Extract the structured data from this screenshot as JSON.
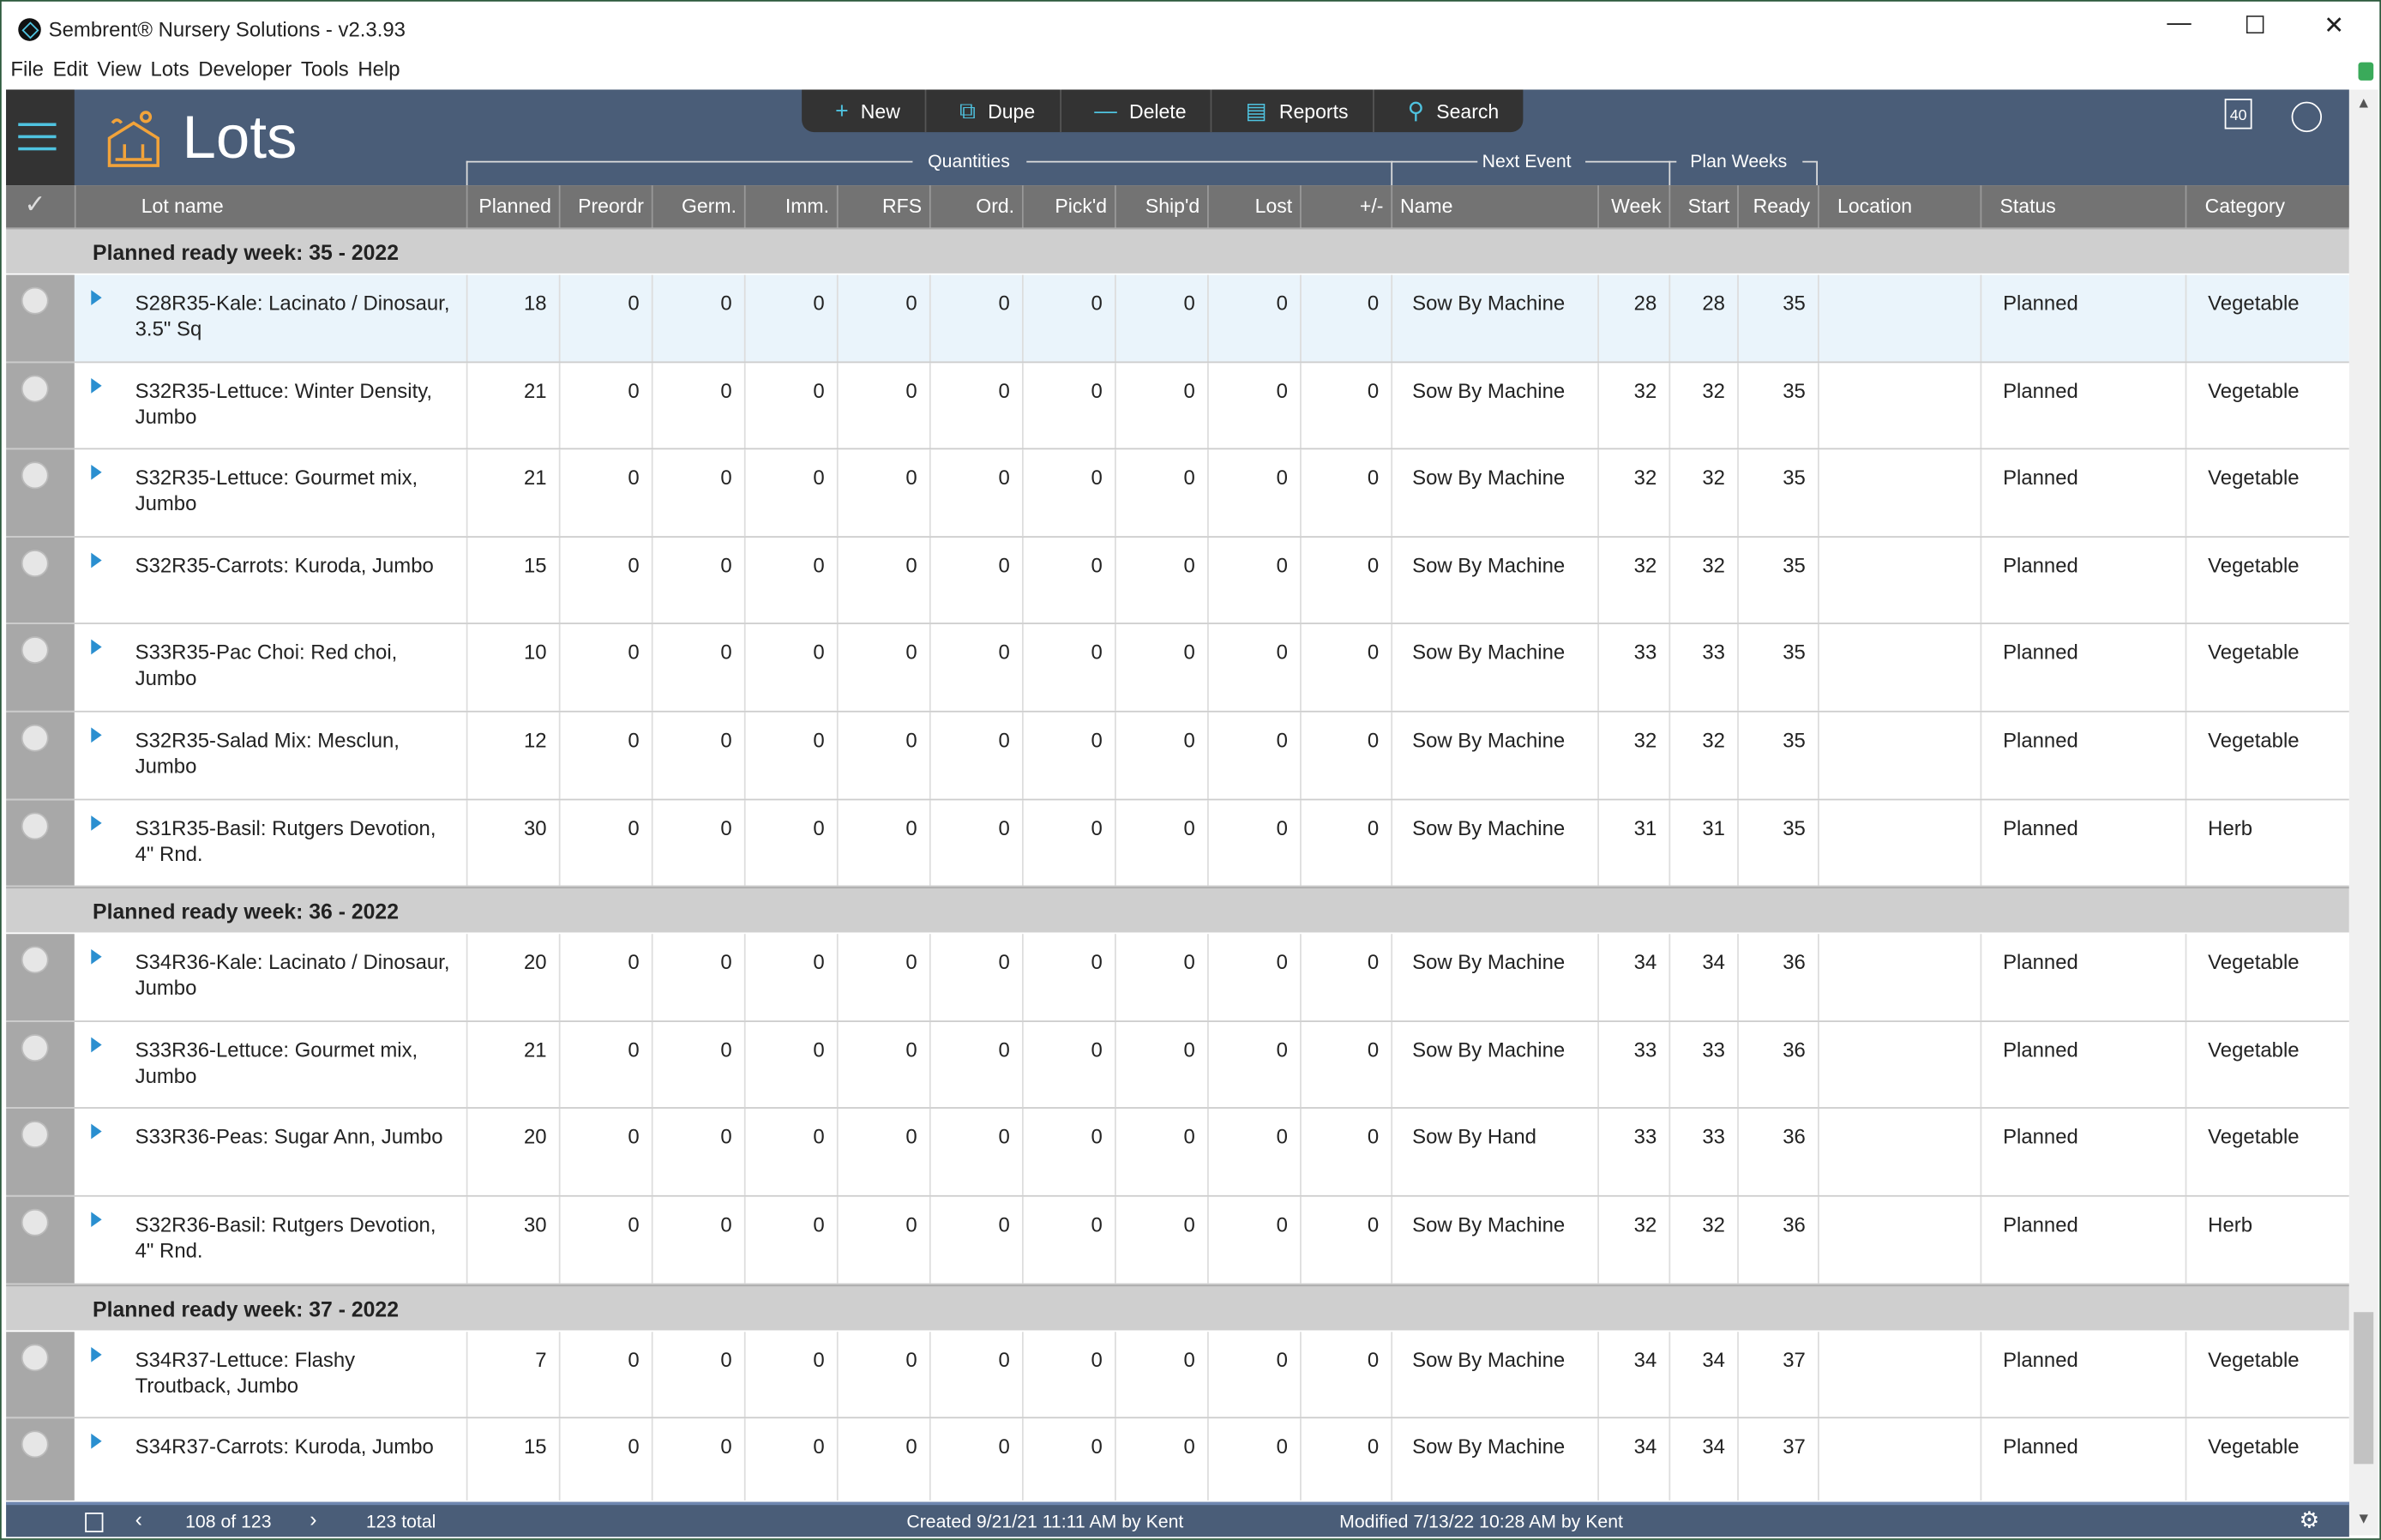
{
  "window": {
    "title": "Sembrent® Nursery Solutions - v2.3.93",
    "minimize": "—",
    "maximize": "☐",
    "close": "✕"
  },
  "menu": [
    "File",
    "Edit",
    "View",
    "Lots",
    "Developer",
    "Tools",
    "Help"
  ],
  "header": {
    "title": "Lots",
    "calendar_week": "40"
  },
  "toolbar": [
    {
      "icon": "plus-icon",
      "glyph": "+",
      "label": "New"
    },
    {
      "icon": "duplicate-icon",
      "glyph": "⧉",
      "label": "Dupe"
    },
    {
      "icon": "minus-icon",
      "glyph": "—",
      "label": "Delete"
    },
    {
      "icon": "report-icon",
      "glyph": "▤",
      "label": "Reports"
    },
    {
      "icon": "search-icon",
      "glyph": "⚲",
      "label": "Search"
    }
  ],
  "column_groups": {
    "quantities": "Quantities",
    "next_event": "Next Event",
    "plan_weeks": "Plan Weeks"
  },
  "columns": [
    "Lot name",
    "Planned",
    "Preordr",
    "Germ.",
    "Imm.",
    "RFS",
    "Ord.",
    "Pick'd",
    "Ship'd",
    "Lost",
    "+/-",
    "Name",
    "Week",
    "Start",
    "Ready",
    "Location",
    "Status",
    "Category"
  ],
  "groups": [
    {
      "label": "Planned ready week: 35 - 2022",
      "rows": [
        [
          "S28R35-Kale: Lacinato / Dinosaur, 3.5\" Sq",
          "18",
          "0",
          "0",
          "0",
          "0",
          "0",
          "0",
          "0",
          "0",
          "0",
          "Sow By Machine",
          "28",
          "28",
          "35",
          "",
          "Planned",
          "Vegetable"
        ],
        [
          "S32R35-Lettuce: Winter Density, Jumbo",
          "21",
          "0",
          "0",
          "0",
          "0",
          "0",
          "0",
          "0",
          "0",
          "0",
          "Sow By Machine",
          "32",
          "32",
          "35",
          "",
          "Planned",
          "Vegetable"
        ],
        [
          "S32R35-Lettuce: Gourmet mix, Jumbo",
          "21",
          "0",
          "0",
          "0",
          "0",
          "0",
          "0",
          "0",
          "0",
          "0",
          "Sow By Machine",
          "32",
          "32",
          "35",
          "",
          "Planned",
          "Vegetable"
        ],
        [
          "S32R35-Carrots: Kuroda, Jumbo",
          "15",
          "0",
          "0",
          "0",
          "0",
          "0",
          "0",
          "0",
          "0",
          "0",
          "Sow By Machine",
          "32",
          "32",
          "35",
          "",
          "Planned",
          "Vegetable"
        ],
        [
          "S33R35-Pac Choi: Red choi, Jumbo",
          "10",
          "0",
          "0",
          "0",
          "0",
          "0",
          "0",
          "0",
          "0",
          "0",
          "Sow By Machine",
          "33",
          "33",
          "35",
          "",
          "Planned",
          "Vegetable"
        ],
        [
          "S32R35-Salad Mix: Mesclun, Jumbo",
          "12",
          "0",
          "0",
          "0",
          "0",
          "0",
          "0",
          "0",
          "0",
          "0",
          "Sow By Machine",
          "32",
          "32",
          "35",
          "",
          "Planned",
          "Vegetable"
        ],
        [
          "S31R35-Basil: Rutgers Devotion, 4\" Rnd.",
          "30",
          "0",
          "0",
          "0",
          "0",
          "0",
          "0",
          "0",
          "0",
          "0",
          "Sow By Machine",
          "31",
          "31",
          "35",
          "",
          "Planned",
          "Herb"
        ]
      ]
    },
    {
      "label": "Planned ready week: 36 - 2022",
      "rows": [
        [
          "S34R36-Kale: Lacinato / Dinosaur, Jumbo",
          "20",
          "0",
          "0",
          "0",
          "0",
          "0",
          "0",
          "0",
          "0",
          "0",
          "Sow By Machine",
          "34",
          "34",
          "36",
          "",
          "Planned",
          "Vegetable"
        ],
        [
          "S33R36-Lettuce: Gourmet mix, Jumbo",
          "21",
          "0",
          "0",
          "0",
          "0",
          "0",
          "0",
          "0",
          "0",
          "0",
          "Sow By Machine",
          "33",
          "33",
          "36",
          "",
          "Planned",
          "Vegetable"
        ],
        [
          "S33R36-Peas: Sugar Ann, Jumbo",
          "20",
          "0",
          "0",
          "0",
          "0",
          "0",
          "0",
          "0",
          "0",
          "0",
          "Sow By Hand",
          "33",
          "33",
          "36",
          "",
          "Planned",
          "Vegetable"
        ],
        [
          "S32R36-Basil: Rutgers Devotion, 4\" Rnd.",
          "30",
          "0",
          "0",
          "0",
          "0",
          "0",
          "0",
          "0",
          "0",
          "0",
          "Sow By Machine",
          "32",
          "32",
          "36",
          "",
          "Planned",
          "Herb"
        ]
      ]
    },
    {
      "label": "Planned ready week: 37 - 2022",
      "rows": [
        [
          "S34R37-Lettuce: Flashy Troutback, Jumbo",
          "7",
          "0",
          "0",
          "0",
          "0",
          "0",
          "0",
          "0",
          "0",
          "0",
          "Sow By Machine",
          "34",
          "34",
          "37",
          "",
          "Planned",
          "Vegetable"
        ],
        [
          "S34R37-Carrots: Kuroda, Jumbo",
          "15",
          "0",
          "0",
          "0",
          "0",
          "0",
          "0",
          "0",
          "0",
          "0",
          "Sow By Machine",
          "34",
          "34",
          "37",
          "",
          "Planned",
          "Vegetable"
        ]
      ]
    }
  ],
  "status": {
    "position": "108 of 123",
    "total": "123 total",
    "created": "Created 9/21/21 11:11 AM by Kent",
    "modified": "Modified 7/13/22 10:28 AM by Kent"
  },
  "colors": {
    "header": "#4a5d78",
    "accent": "#4fc3e0",
    "column_header": "#737373",
    "group_row": "#cfcfcf",
    "icon_orange": "#f2a33a"
  }
}
